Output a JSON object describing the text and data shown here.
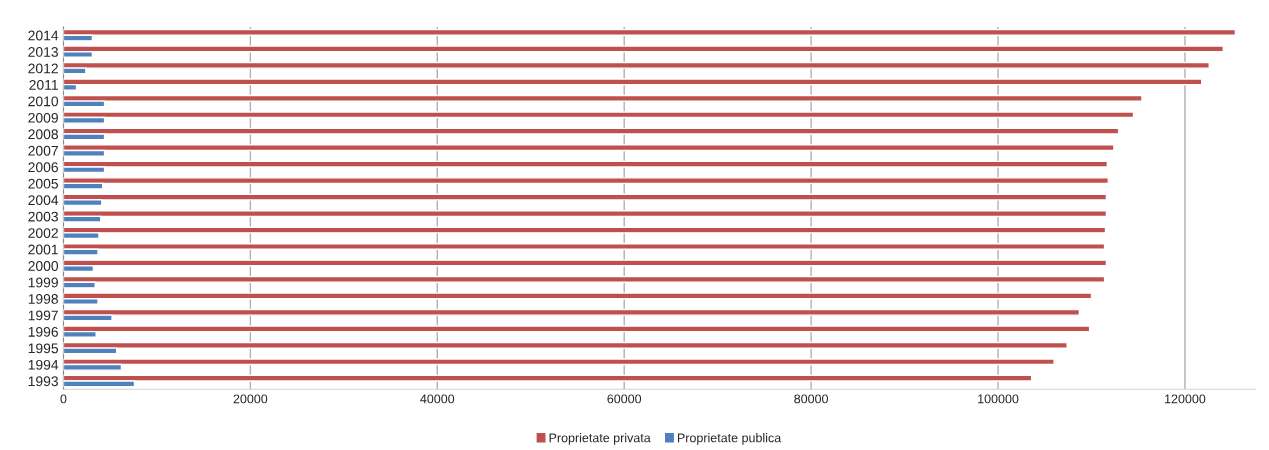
{
  "chart_data": {
    "type": "bar",
    "orientation": "horizontal",
    "categories": [
      "2014",
      "2013",
      "2012",
      "2011",
      "2010",
      "2009",
      "2008",
      "2007",
      "2006",
      "2005",
      "2004",
      "2003",
      "2002",
      "2001",
      "2000",
      "1999",
      "1998",
      "1997",
      "1996",
      "1995",
      "1994",
      "1993"
    ],
    "series": [
      {
        "name": "Proprietate privata",
        "color": "#c0504d",
        "values": [
          125400,
          124100,
          122600,
          121800,
          115400,
          114500,
          112900,
          112400,
          111700,
          111800,
          111600,
          111600,
          111500,
          111400,
          111600,
          111400,
          110000,
          108700,
          109800,
          107400,
          106000,
          103600
        ]
      },
      {
        "name": "Proprietate publica",
        "color": "#4f81bd",
        "values": [
          3100,
          3100,
          2400,
          1400,
          4400,
          4400,
          4400,
          4400,
          4400,
          4200,
          4100,
          4000,
          3800,
          3700,
          3200,
          3400,
          3700,
          5200,
          3500,
          5700,
          6200,
          7600
        ]
      }
    ],
    "xlim": [
      0,
      127500
    ],
    "xticks": [
      0,
      20000,
      40000,
      60000,
      80000,
      100000,
      120000
    ],
    "grid": "x",
    "legend": "bottom"
  }
}
